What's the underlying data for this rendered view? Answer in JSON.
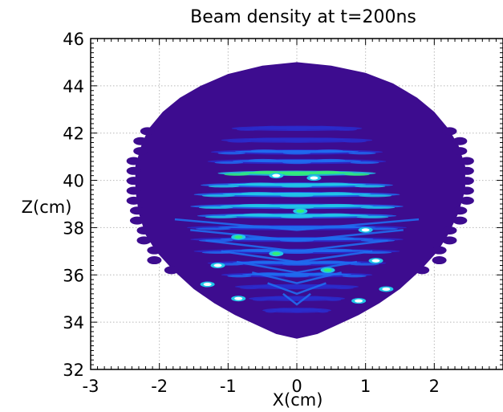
{
  "chart_data": {
    "type": "heatmap",
    "title": "Beam density at t=200ns",
    "xlabel": "X(cm)",
    "ylabel": "Z(cm)",
    "xlim": [
      -3,
      3
    ],
    "ylim": [
      32,
      46
    ],
    "x_ticks": [
      -3,
      -2,
      -1,
      0,
      1,
      2,
      3
    ],
    "y_ticks": [
      32,
      34,
      36,
      38,
      40,
      42,
      44,
      46
    ],
    "x_tick_labels": [
      "-3",
      "-2",
      "-1",
      "0",
      "1",
      "2",
      ""
    ],
    "y_tick_labels": [
      "32",
      "34",
      "36",
      "38",
      "40",
      "42",
      "44",
      "46"
    ],
    "grid": true,
    "colormap": [
      "#3b0a8e",
      "#2a2ccc",
      "#1f6cf0",
      "#21c8e8",
      "#33ee77",
      "#ffffff"
    ],
    "colors": {
      "background_density": "#3d0c8f",
      "frame": "#000000",
      "grid": "#b8b8b8"
    },
    "beam_envelope": {
      "description_units": "cm",
      "outline": [
        [
          -2.25,
          41.6
        ],
        [
          -2.15,
          42.2
        ],
        [
          -1.95,
          42.9
        ],
        [
          -1.7,
          43.5
        ],
        [
          -1.4,
          44.0
        ],
        [
          -1.0,
          44.5
        ],
        [
          -0.5,
          44.85
        ],
        [
          0.0,
          45.0
        ],
        [
          0.5,
          44.85
        ],
        [
          1.0,
          44.55
        ],
        [
          1.4,
          44.1
        ],
        [
          1.75,
          43.5
        ],
        [
          2.0,
          42.9
        ],
        [
          2.2,
          42.2
        ],
        [
          2.35,
          41.5
        ],
        [
          2.45,
          40.6
        ],
        [
          2.45,
          39.6
        ],
        [
          2.35,
          38.6
        ],
        [
          2.2,
          37.7
        ],
        [
          2.05,
          37.0
        ],
        [
          1.8,
          36.2
        ],
        [
          1.5,
          35.4
        ],
        [
          1.2,
          34.8
        ],
        [
          0.9,
          34.3
        ],
        [
          0.6,
          33.9
        ],
        [
          0.3,
          33.5
        ],
        [
          0.0,
          33.3
        ],
        [
          -0.3,
          33.5
        ],
        [
          -0.6,
          33.9
        ],
        [
          -0.9,
          34.3
        ],
        [
          -1.2,
          34.8
        ],
        [
          -1.5,
          35.4
        ],
        [
          -1.8,
          36.2
        ],
        [
          -2.05,
          37.0
        ],
        [
          -2.2,
          37.7
        ],
        [
          -2.3,
          38.6
        ],
        [
          -2.35,
          39.6
        ],
        [
          -2.35,
          40.6
        ]
      ]
    },
    "density_bands": [
      {
        "z": 42.2,
        "half_width": 0.95,
        "level": 1
      },
      {
        "z": 41.7,
        "half_width": 1.1,
        "level": 1
      },
      {
        "z": 41.2,
        "half_width": 1.25,
        "level": 2
      },
      {
        "z": 40.8,
        "half_width": 1.3,
        "level": 2
      },
      {
        "z": 40.3,
        "half_width": 1.15,
        "level": 4
      },
      {
        "z": 39.8,
        "half_width": 1.4,
        "level": 3
      },
      {
        "z": 39.4,
        "half_width": 1.5,
        "level": 3
      },
      {
        "z": 38.9,
        "half_width": 1.55,
        "level": 3
      },
      {
        "z": 38.5,
        "half_width": 1.45,
        "level": 3
      },
      {
        "z": 38.0,
        "half_width": 1.6,
        "level": 2
      },
      {
        "z": 37.5,
        "half_width": 1.55,
        "level": 2
      },
      {
        "z": 37.0,
        "half_width": 1.5,
        "level": 2
      },
      {
        "z": 36.5,
        "half_width": 1.3,
        "level": 2
      },
      {
        "z": 36.0,
        "half_width": 1.1,
        "level": 2
      },
      {
        "z": 35.5,
        "half_width": 0.9,
        "level": 1
      },
      {
        "z": 35.0,
        "half_width": 0.7,
        "level": 1
      },
      {
        "z": 34.5,
        "half_width": 0.5,
        "level": 1
      }
    ],
    "hot_spots": [
      {
        "x": -0.3,
        "z": 40.2,
        "level": 5
      },
      {
        "x": 0.25,
        "z": 40.1,
        "level": 5
      },
      {
        "x": 0.05,
        "z": 38.7,
        "level": 4
      },
      {
        "x": -0.85,
        "z": 37.6,
        "level": 4
      },
      {
        "x": 1.0,
        "z": 37.9,
        "level": 5
      },
      {
        "x": -1.15,
        "z": 36.4,
        "level": 5
      },
      {
        "x": 1.15,
        "z": 36.6,
        "level": 5
      },
      {
        "x": -1.3,
        "z": 35.6,
        "level": 5
      },
      {
        "x": 1.3,
        "z": 35.4,
        "level": 5
      },
      {
        "x": -0.85,
        "z": 35.0,
        "level": 5
      },
      {
        "x": 0.9,
        "z": 34.9,
        "level": 5
      },
      {
        "x": -0.3,
        "z": 36.9,
        "level": 4
      },
      {
        "x": 0.45,
        "z": 36.2,
        "level": 4
      }
    ]
  }
}
